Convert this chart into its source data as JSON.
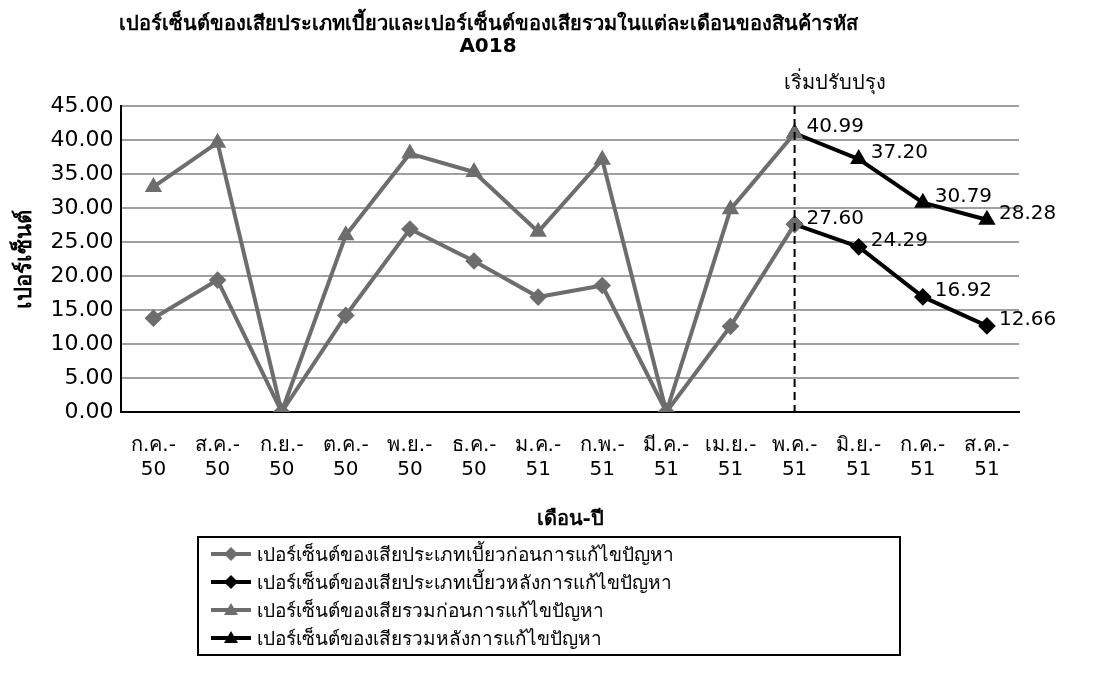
{
  "chart_data": {
    "type": "line",
    "title": "เปอร์เซ็นต์ของเสียประเภทเบี้ยวและเปอร์เซ็นต์ของเสียรวมในแต่ละเดือนของสินค้ารหัส A018",
    "xlabel": "เดือน-ปี",
    "ylabel": "เปอร์เซ็นต์",
    "categories": [
      "ก.ค.-50",
      "ส.ค.-50",
      "ก.ย.-50",
      "ต.ค.-50",
      "พ.ย.-50",
      "ธ.ค.-50",
      "ม.ค.-51",
      "ก.พ.-51",
      "มี.ค.-51",
      "เม.ย.-51",
      "พ.ค.-51",
      "มิ.ย.-51",
      "ก.ค.-51",
      "ส.ค.-51"
    ],
    "series": [
      {
        "name": "เปอร์เซ็นต์ของเสียประเภทเบี้ยวก่อนการแก้ไขปัญหา",
        "color": "#6d6d6d",
        "marker": "diamond",
        "values": [
          13.8,
          19.4,
          0,
          14.2,
          26.9,
          22.2,
          16.9,
          18.6,
          0,
          12.6,
          27.6,
          null,
          null,
          null
        ]
      },
      {
        "name": "เปอร์เซ็นต์ของเสียประเภทเบี้ยวหลังการแก้ไขปัญหา",
        "color": "#000000",
        "marker": "diamond",
        "values": [
          null,
          null,
          null,
          null,
          null,
          null,
          null,
          null,
          null,
          null,
          27.6,
          24.29,
          16.92,
          12.66
        ],
        "value_labels": [
          null,
          null,
          null,
          null,
          null,
          null,
          null,
          null,
          null,
          null,
          "27.60",
          "24.29",
          "16.92",
          "12.66"
        ]
      },
      {
        "name": "เปอร์เซ็นต์ของเสียรวมก่อนการแก้ไขปัญหา",
        "color": "#6d6d6d",
        "marker": "triangle",
        "values": [
          33.1,
          39.6,
          0,
          26.0,
          38.0,
          35.3,
          26.5,
          37.1,
          0,
          29.8,
          40.99,
          null,
          null,
          null
        ]
      },
      {
        "name": "เปอร์เซ็นต์ของเสียรวมหลังการแก้ไขปัญหา",
        "color": "#000000",
        "marker": "triangle",
        "values": [
          null,
          null,
          null,
          null,
          null,
          null,
          null,
          null,
          null,
          null,
          40.99,
          37.2,
          30.79,
          28.28
        ],
        "value_labels": [
          null,
          null,
          null,
          null,
          null,
          null,
          null,
          null,
          null,
          null,
          "40.99",
          "37.20",
          "30.79",
          "28.28"
        ]
      }
    ],
    "ylim": [
      0,
      45
    ],
    "yticks": [
      {
        "value": 0,
        "label": "0.00"
      },
      {
        "value": 5,
        "label": "5.00"
      },
      {
        "value": 10,
        "label": "10.00"
      },
      {
        "value": 15,
        "label": "15.00"
      },
      {
        "value": 20,
        "label": "20.00"
      },
      {
        "value": 25,
        "label": "25.00"
      },
      {
        "value": 30,
        "label": "30.00"
      },
      {
        "value": 35,
        "label": "35.00"
      },
      {
        "value": 40,
        "label": "40.00"
      },
      {
        "value": 45,
        "label": "45.00"
      }
    ],
    "ref_lines": [
      {
        "axis": "x",
        "value": "พ.ค.-51",
        "label": "เริ่มปรับปรุง",
        "color": "#000000",
        "line_style": "dashed"
      }
    ],
    "grid": "y",
    "legend": "bottom",
    "line_style": "solid"
  }
}
